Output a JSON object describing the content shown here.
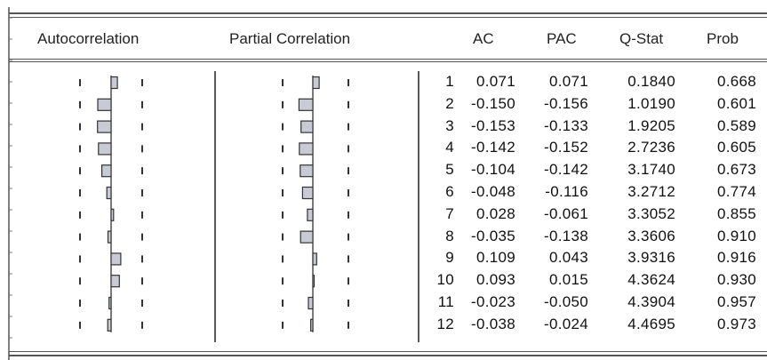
{
  "header": {
    "autocorrelation": "Autocorrelation",
    "partial_correlation": "Partial Correlation",
    "ac": "AC",
    "pac": "PAC",
    "qstat": "Q-Stat",
    "prob": "Prob"
  },
  "chart_data": {
    "type": "table",
    "columns": [
      "",
      "AC",
      "PAC",
      "Q-Stat",
      "Prob"
    ],
    "rows": [
      {
        "lag": "1",
        "ac": "0.071",
        "pac": "0.071",
        "q": "0.1840",
        "prob": "0.668"
      },
      {
        "lag": "2",
        "ac": "-0.150",
        "pac": "-0.156",
        "q": "1.0190",
        "prob": "0.601"
      },
      {
        "lag": "3",
        "ac": "-0.153",
        "pac": "-0.133",
        "q": "1.9205",
        "prob": "0.589"
      },
      {
        "lag": "4",
        "ac": "-0.142",
        "pac": "-0.152",
        "q": "2.7236",
        "prob": "0.605"
      },
      {
        "lag": "5",
        "ac": "-0.104",
        "pac": "-0.142",
        "q": "3.1740",
        "prob": "0.673"
      },
      {
        "lag": "6",
        "ac": "-0.048",
        "pac": "-0.116",
        "q": "3.2712",
        "prob": "0.774"
      },
      {
        "lag": "7",
        "ac": "0.028",
        "pac": "-0.061",
        "q": "3.3052",
        "prob": "0.855"
      },
      {
        "lag": "8",
        "ac": "-0.035",
        "pac": "-0.138",
        "q": "3.3606",
        "prob": "0.910"
      },
      {
        "lag": "9",
        "ac": "0.109",
        "pac": "0.043",
        "q": "3.9316",
        "prob": "0.916"
      },
      {
        "lag": "10",
        "ac": "0.093",
        "pac": "0.015",
        "q": "4.3624",
        "prob": "0.930"
      },
      {
        "lag": "11",
        "ac": "-0.023",
        "pac": "-0.050",
        "q": "4.3904",
        "prob": "0.957"
      },
      {
        "lag": "12",
        "ac": "-0.038",
        "pac": "-0.024",
        "q": "4.4695",
        "prob": "0.973"
      }
    ],
    "bar_fill": "#c8cbd6",
    "bar_stroke": "#333333"
  }
}
